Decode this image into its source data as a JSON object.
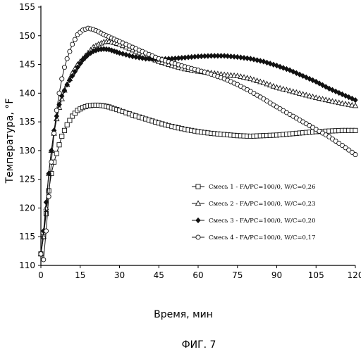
{
  "figure_caption": "ФИГ. 7",
  "chart_data": {
    "type": "line",
    "title": "",
    "xlabel": "Время, мин",
    "ylabel": "Температура, °F",
    "xlim": [
      0,
      120
    ],
    "ylim": [
      110,
      155
    ],
    "xticks": [
      0,
      15,
      30,
      45,
      60,
      75,
      90,
      105,
      120
    ],
    "yticks": [
      110,
      115,
      120,
      125,
      130,
      135,
      140,
      145,
      150,
      155
    ],
    "grid": false,
    "legend_position": "right",
    "series": [
      {
        "name": "Смесь 1 - FA/PC=100/0, W/C=0,26",
        "marker": "square",
        "x": [
          0,
          1,
          2,
          3,
          4,
          5,
          6,
          7,
          8,
          9,
          10,
          12,
          14,
          16,
          18,
          20,
          22,
          24,
          26,
          28,
          30,
          35,
          40,
          45,
          50,
          55,
          60,
          65,
          70,
          75,
          80,
          85,
          90,
          95,
          100,
          105,
          110,
          115,
          120
        ],
        "y": [
          112,
          115,
          119,
          123,
          126,
          128,
          129.5,
          131,
          132.5,
          133.5,
          134.5,
          136,
          137,
          137.5,
          137.8,
          137.9,
          137.9,
          137.8,
          137.6,
          137.3,
          137,
          136.2,
          135.5,
          134.8,
          134.2,
          133.7,
          133.3,
          133,
          132.8,
          132.6,
          132.5,
          132.6,
          132.7,
          132.9,
          133.1,
          133.3,
          133.4,
          133.5,
          133.5
        ]
      },
      {
        "name": "Смесь 2 - FA/PC=100/0, W/C=0,23",
        "marker": "triangle",
        "x": [
          0,
          1,
          2,
          3,
          4,
          5,
          6,
          7,
          8,
          9,
          10,
          12,
          14,
          16,
          18,
          20,
          22,
          24,
          26,
          28,
          30,
          35,
          40,
          45,
          50,
          55,
          60,
          65,
          70,
          75,
          80,
          85,
          90,
          95,
          100,
          105,
          110,
          115,
          120
        ],
        "y": [
          112,
          115,
          120,
          126,
          130,
          133,
          135.5,
          137.5,
          139,
          140.5,
          141.5,
          143.5,
          145,
          146,
          147,
          148,
          148.5,
          148.9,
          149,
          148.8,
          148.5,
          147.5,
          146.5,
          145.5,
          144.8,
          144.2,
          143.8,
          143.5,
          143.2,
          143,
          142.5,
          141.8,
          141,
          140.4,
          139.8,
          139.2,
          138.7,
          138.2,
          137.8
        ]
      },
      {
        "name": "Смесь 3 - FA/PC=100/0, W/C=0,20",
        "marker": "diamond",
        "x": [
          0,
          1,
          2,
          3,
          4,
          5,
          6,
          7,
          8,
          9,
          10,
          12,
          14,
          16,
          18,
          20,
          22,
          24,
          26,
          28,
          30,
          35,
          40,
          45,
          50,
          55,
          60,
          65,
          70,
          75,
          80,
          85,
          90,
          95,
          100,
          105,
          110,
          115,
          120
        ],
        "y": [
          112,
          116,
          121,
          126,
          130,
          133.5,
          136,
          138,
          139.5,
          140.5,
          141.5,
          143,
          144.5,
          145.8,
          146.7,
          147.3,
          147.6,
          147.7,
          147.6,
          147.3,
          147,
          146.4,
          146,
          145.9,
          146,
          146.2,
          146.4,
          146.5,
          146.5,
          146.3,
          146,
          145.5,
          144.8,
          144,
          143,
          142,
          140.8,
          139.8,
          138.8
        ]
      },
      {
        "name": "Смесь 4 - FA/PC=100/0, W/C=0,17",
        "marker": "circle",
        "x": [
          0,
          1,
          2,
          3,
          4,
          5,
          6,
          7,
          8,
          9,
          10,
          12,
          14,
          16,
          18,
          20,
          22,
          24,
          26,
          28,
          30,
          35,
          40,
          45,
          50,
          55,
          60,
          65,
          70,
          75,
          80,
          85,
          90,
          95,
          100,
          105,
          110,
          115,
          120
        ],
        "y": [
          112,
          111,
          116,
          122,
          128,
          133,
          137,
          140,
          142.5,
          144.5,
          146,
          148.5,
          150.2,
          151,
          151.3,
          151.1,
          150.7,
          150.2,
          149.8,
          149.4,
          149,
          148,
          147,
          146,
          145.3,
          144.6,
          144,
          143.3,
          142.5,
          141.5,
          140.3,
          139,
          137.6,
          136.3,
          135,
          133.7,
          132.4,
          130.9,
          129.3
        ]
      }
    ]
  }
}
